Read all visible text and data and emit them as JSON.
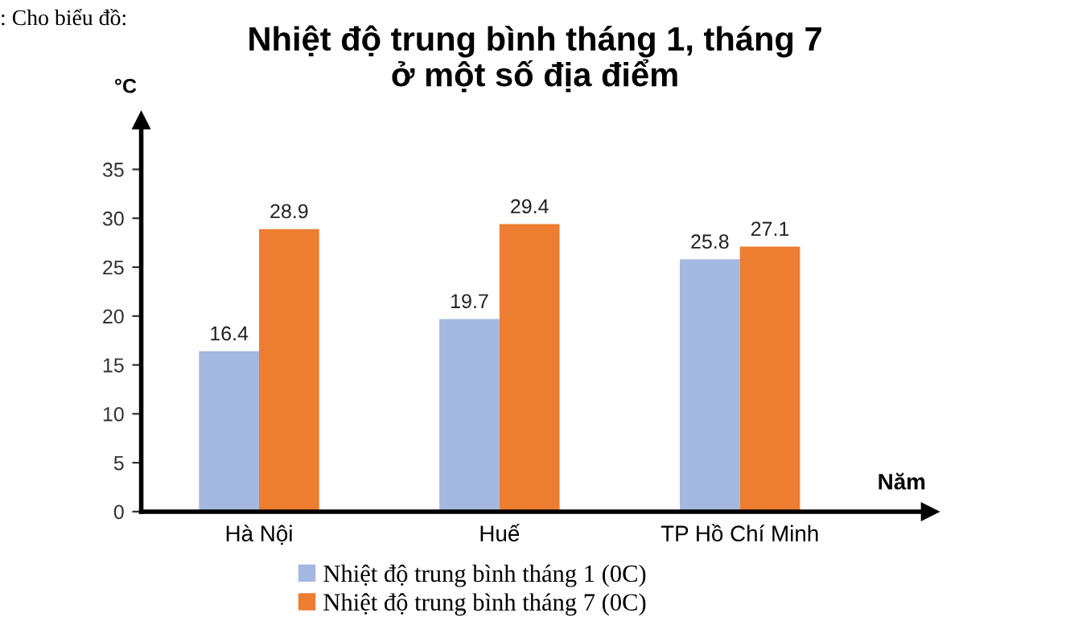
{
  "chart_data": {
    "type": "bar",
    "title": "Nhiệt độ trung bình tháng 1, tháng 7\nở một số địa điểm",
    "ylabel": "°C",
    "xlabel": "Năm",
    "annotations": [
      ": Cho biểu đồ:"
    ],
    "categories": [
      "Hà Nội",
      "Huế",
      "TP Hồ Chí Minh"
    ],
    "series": [
      {
        "name": "Nhiệt độ trung bình tháng 1 (0C)",
        "color": "#a4b8e0",
        "values": [
          16.4,
          19.7,
          25.8
        ]
      },
      {
        "name": "Nhiệt độ trung bình tháng 7 (0C)",
        "color": "#ed7d31",
        "values": [
          28.9,
          29.4,
          27.1
        ]
      }
    ],
    "ylim": [
      0,
      40
    ],
    "yticks": [
      0,
      5,
      10,
      15,
      20,
      25,
      30,
      35
    ],
    "data_labels": true,
    "grid": false,
    "legend": "bottom"
  }
}
